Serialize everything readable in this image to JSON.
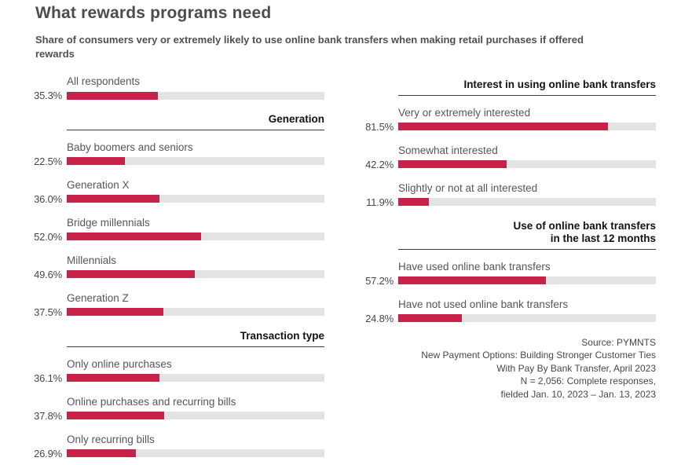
{
  "page": {
    "title": "What rewards programs need",
    "subtitle": "Share of consumers very or extremely likely to use online bank transfers when making retail purchases if offered rewards"
  },
  "colors": {
    "bar_fill": "#C7234A",
    "bar_track": "#E3E3E3",
    "title_text": "#4B4C4E",
    "label_text": "#54565E",
    "section_text": "#121212"
  },
  "chart_data": {
    "type": "bar",
    "orientation": "horizontal",
    "value_unit": "%",
    "axis_range": [
      0,
      100
    ],
    "columns": [
      {
        "sections": [
          {
            "header": null,
            "items": [
              {
                "label": "All respondents",
                "value": 35.3,
                "display": "35.3%"
              }
            ]
          },
          {
            "header": "Generation",
            "items": [
              {
                "label": "Baby boomers and seniors",
                "value": 22.5,
                "display": "22.5%"
              },
              {
                "label": "Generation X",
                "value": 36.0,
                "display": "36.0%"
              },
              {
                "label": "Bridge millennials",
                "value": 52.0,
                "display": "52.0%"
              },
              {
                "label": "Millennials",
                "value": 49.6,
                "display": "49.6%"
              },
              {
                "label": "Generation Z",
                "value": 37.5,
                "display": "37.5%"
              }
            ]
          },
          {
            "header": "Transaction type",
            "items": [
              {
                "label": "Only online purchases",
                "value": 36.1,
                "display": "36.1%"
              },
              {
                "label": "Online purchases and recurring bills",
                "value": 37.8,
                "display": "37.8%"
              },
              {
                "label": "Only recurring bills",
                "value": 26.9,
                "display": "26.9%"
              }
            ]
          }
        ]
      },
      {
        "sections": [
          {
            "header": "Interest in using online bank transfers",
            "items": [
              {
                "label": "Very or extremely interested",
                "value": 81.5,
                "display": "81.5%"
              },
              {
                "label": "Somewhat interested",
                "value": 42.2,
                "display": "42.2%"
              },
              {
                "label": "Slightly or not at all interested",
                "value": 11.9,
                "display": "11.9%"
              }
            ]
          },
          {
            "header": "Use of online bank transfers\nin the last 12 months",
            "items": [
              {
                "label": "Have used online bank transfers",
                "value": 57.2,
                "display": "57.2%"
              },
              {
                "label": "Have not used online bank transfers",
                "value": 24.8,
                "display": "24.8%"
              }
            ]
          }
        ]
      }
    ]
  },
  "source": {
    "lines": [
      "Source: PYMNTS",
      "New Payment Options: Building Stronger Customer Ties",
      "With Pay By Bank Transfer, April 2023",
      "N = 2,056: Complete responses,",
      "fielded Jan. 10, 2023 – Jan. 13, 2023"
    ]
  }
}
